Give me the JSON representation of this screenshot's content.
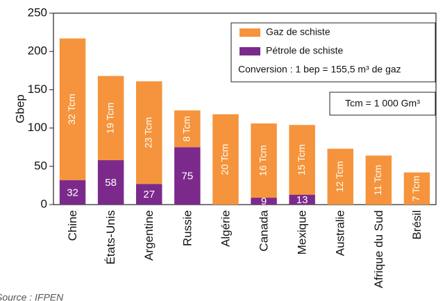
{
  "chart_data": {
    "type": "stacked_bar",
    "ylabel": "Gbep",
    "categories": [
      "Chine",
      "États-Unis",
      "Argentine",
      "Russie",
      "Algérie",
      "Canada",
      "Mexique",
      "Australie",
      "Afrique du Sud",
      "Brésil"
    ],
    "series": [
      {
        "name": "Gaz de schiste",
        "color": "#f5943c",
        "values": [
          185,
          110,
          134,
          48,
          118,
          97,
          91,
          73,
          64,
          42
        ],
        "segment_labels": [
          "32 Tcm",
          "19 Tcm",
          "23 Tcm",
          "8 Tcm",
          "20 Tcm",
          "16 Tcm",
          "15 Tcm",
          "12 Tcm",
          "11 Tcm",
          "7 Tcm"
        ]
      },
      {
        "name": "Pétrole de schiste",
        "color": "#7b2a8c",
        "values": [
          32,
          58,
          27,
          75,
          0,
          9,
          13,
          0,
          0,
          0
        ]
      }
    ],
    "stack_order": [
      1,
      0
    ],
    "ylim": [
      0,
      250
    ],
    "yticks": [
      0,
      50,
      100,
      150,
      200,
      250
    ],
    "legend_note": "Conversion : 1 bep = 155,5 m³ de gaz",
    "annotation": "Tcm = 1 000 Gm³",
    "source": "Source : IFPEN"
  }
}
